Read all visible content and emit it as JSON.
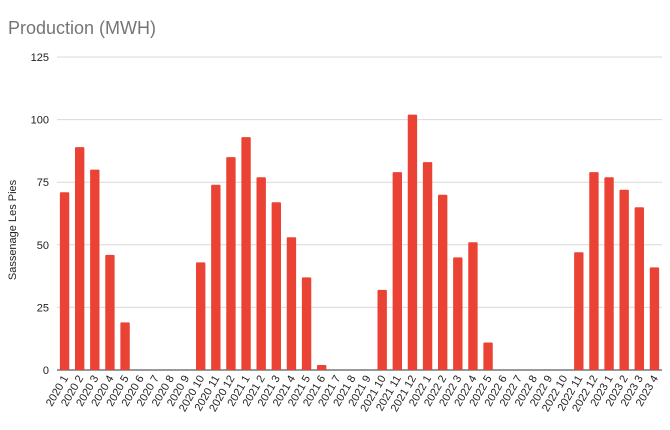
{
  "chart_data": {
    "type": "bar",
    "title": "Production (MWH)",
    "xlabel": "",
    "ylabel": "Sassenage Les Pies",
    "ylim": [
      0,
      125
    ],
    "yticks": [
      0,
      25,
      50,
      75,
      100,
      125
    ],
    "grid": true,
    "bar_color": "#ea4335",
    "categories": [
      "2020 1",
      "2020 2",
      "2020 3",
      "2020 4",
      "2020 5",
      "2020 6",
      "2020 7",
      "2020 8",
      "2020 9",
      "2020 10",
      "2020 11",
      "2020 12",
      "2021 1",
      "2021 2",
      "2021 3",
      "2021 4",
      "2021 5",
      "2021 6",
      "2021 7",
      "2021 8",
      "2021 9",
      "2021 10",
      "2021 11",
      "2021 12",
      "2022 1",
      "2022 2",
      "2022 3",
      "2022 4",
      "2022 5",
      "2022 6",
      "2022 7",
      "2022 8",
      "2022 9",
      "2022 10",
      "2022 11",
      "2022 12",
      "2023 1",
      "2023 2",
      "2023 3",
      "2023 4"
    ],
    "values": [
      71,
      89,
      80,
      46,
      19,
      0,
      0,
      0,
      0,
      43,
      74,
      85,
      93,
      77,
      67,
      53,
      37,
      2,
      0,
      0,
      0,
      32,
      79,
      102,
      83,
      70,
      45,
      51,
      11,
      0,
      0,
      0,
      0,
      0,
      47,
      79,
      77,
      72,
      65,
      41
    ]
  }
}
